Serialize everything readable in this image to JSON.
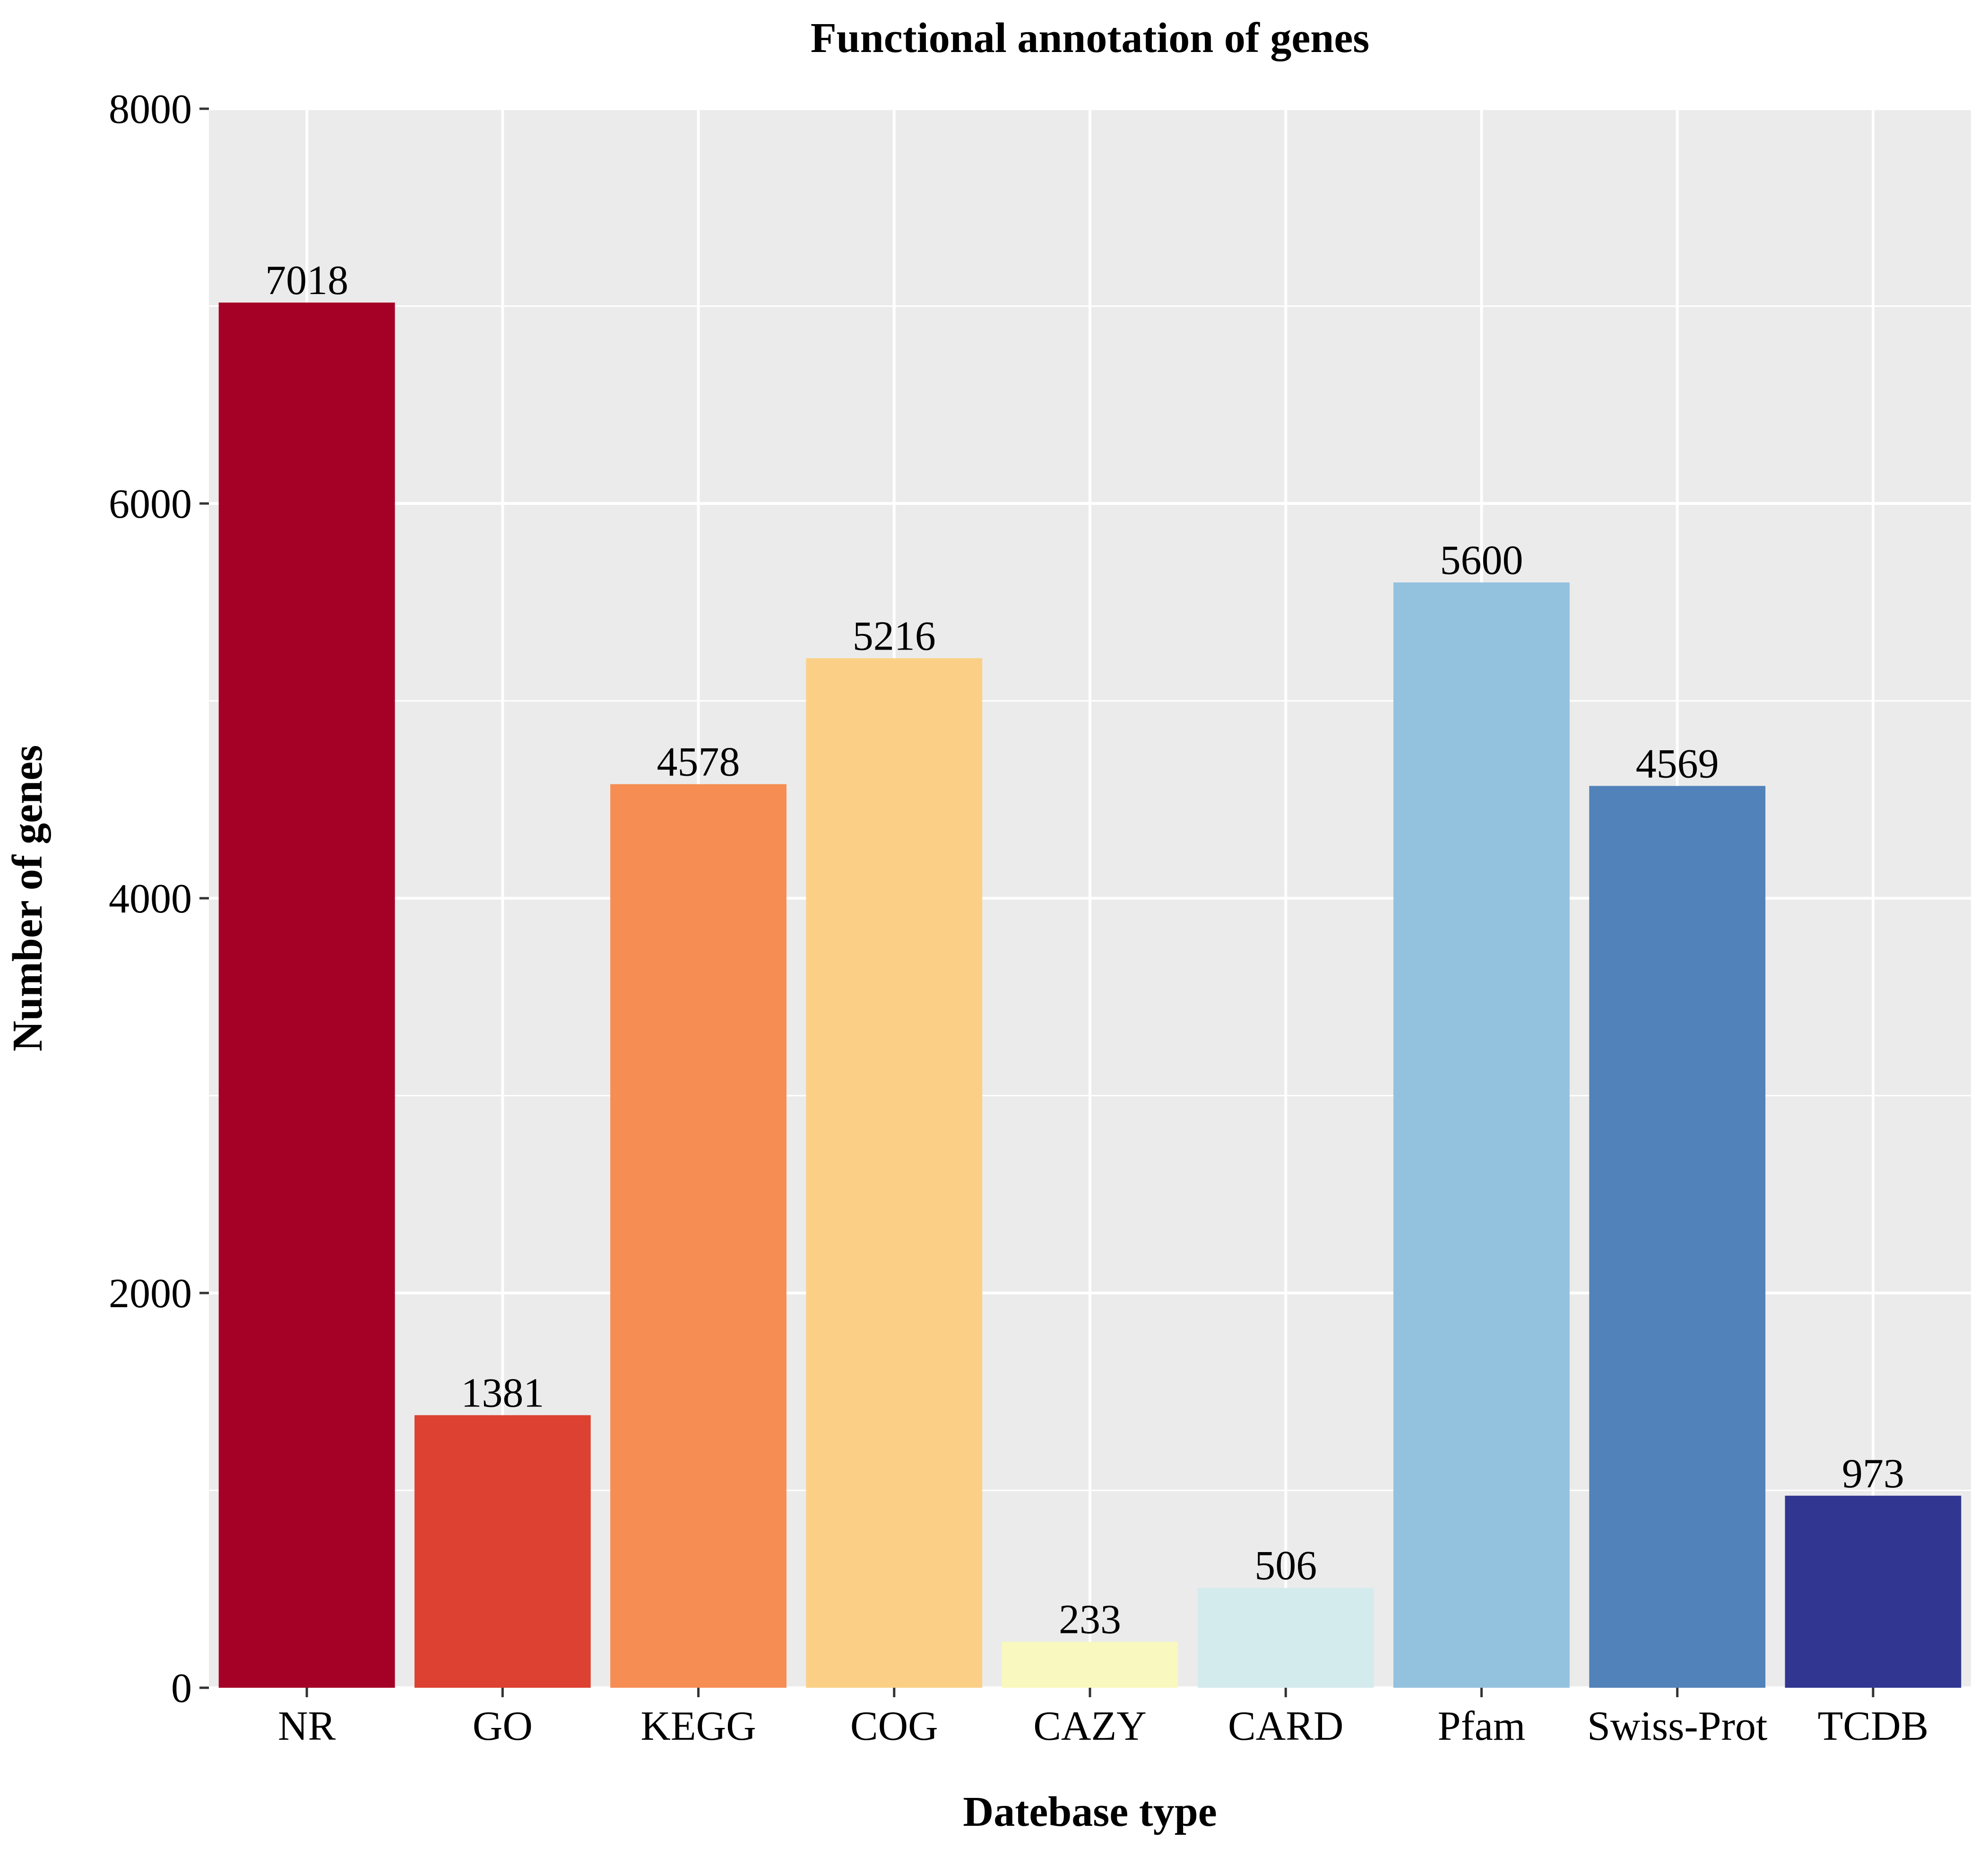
{
  "chart_data": {
    "type": "bar",
    "title": "Functional annotation of genes",
    "xlabel": "Datebase type",
    "ylabel": "Number of genes",
    "categories": [
      "NR",
      "GO",
      "KEGG",
      "COG",
      "CAZY",
      "CARD",
      "Pfam",
      "Swiss-Prot",
      "TCDB"
    ],
    "values": [
      7018,
      1381,
      4578,
      5216,
      233,
      506,
      5600,
      4569,
      973
    ],
    "data_labels": [
      "7018",
      "1381",
      "4578",
      "5216",
      "233",
      "506",
      "5600",
      "4569",
      "973"
    ],
    "colors": [
      "#A50026",
      "#DD4131",
      "#F68D53",
      "#FBD086",
      "#F9F8BF",
      "#D4EBEE",
      "#93C2DE",
      "#5282BA",
      "#313690"
    ],
    "ylim": [
      0,
      8000
    ],
    "yticks": [
      0,
      2000,
      4000,
      6000,
      8000
    ],
    "ytick_labels": [
      "0",
      "2000",
      "4000",
      "6000",
      "8000"
    ],
    "grid": true,
    "panel_background": "#EBEBEB",
    "grid_color": "#FFFFFF"
  }
}
